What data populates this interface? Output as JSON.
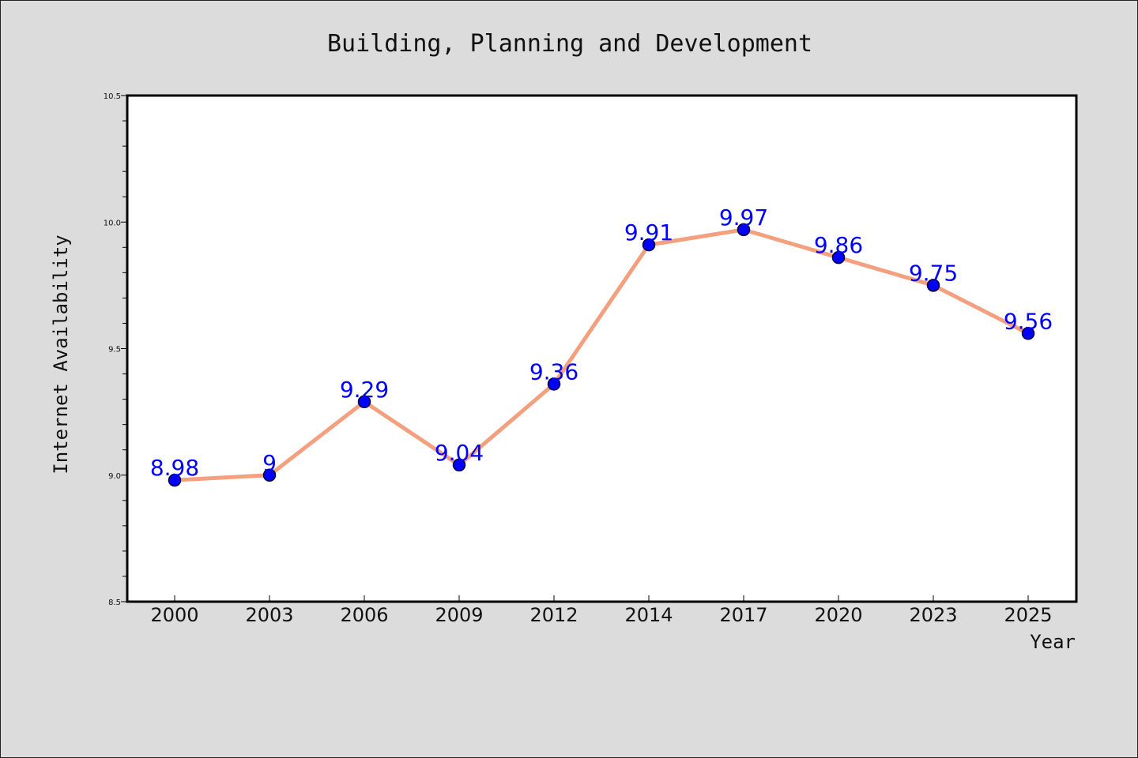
{
  "chart_data": {
    "type": "line",
    "title": "Building, Planning and Development",
    "xlabel": "Year",
    "ylabel": "Internet Availability",
    "categories": [
      "2000",
      "2003",
      "2006",
      "2009",
      "2012",
      "2014",
      "2017",
      "2020",
      "2023",
      "2025"
    ],
    "series": [
      {
        "values": [
          8.98,
          9,
          9.29,
          9.04,
          9.36,
          9.91,
          9.97,
          9.86,
          9.75,
          9.56
        ],
        "data_labels": [
          "8.98",
          "9",
          "9.29",
          "9.04",
          "9.36",
          "9.91",
          "9.97",
          "9.86",
          "9.75",
          "9.56"
        ]
      }
    ],
    "ylim": [
      8.5,
      10.5
    ],
    "yticks": [
      "8.5",
      "9.0",
      "9.5",
      "10.0",
      "10.5"
    ],
    "grid": false,
    "colors": {
      "background": "#dcdcdc",
      "plot_background": "#ffffff",
      "line": "#f4a07f",
      "marker_fill": "#0000ff",
      "marker_edge": "#000033",
      "data_label": "#0000ff"
    }
  }
}
